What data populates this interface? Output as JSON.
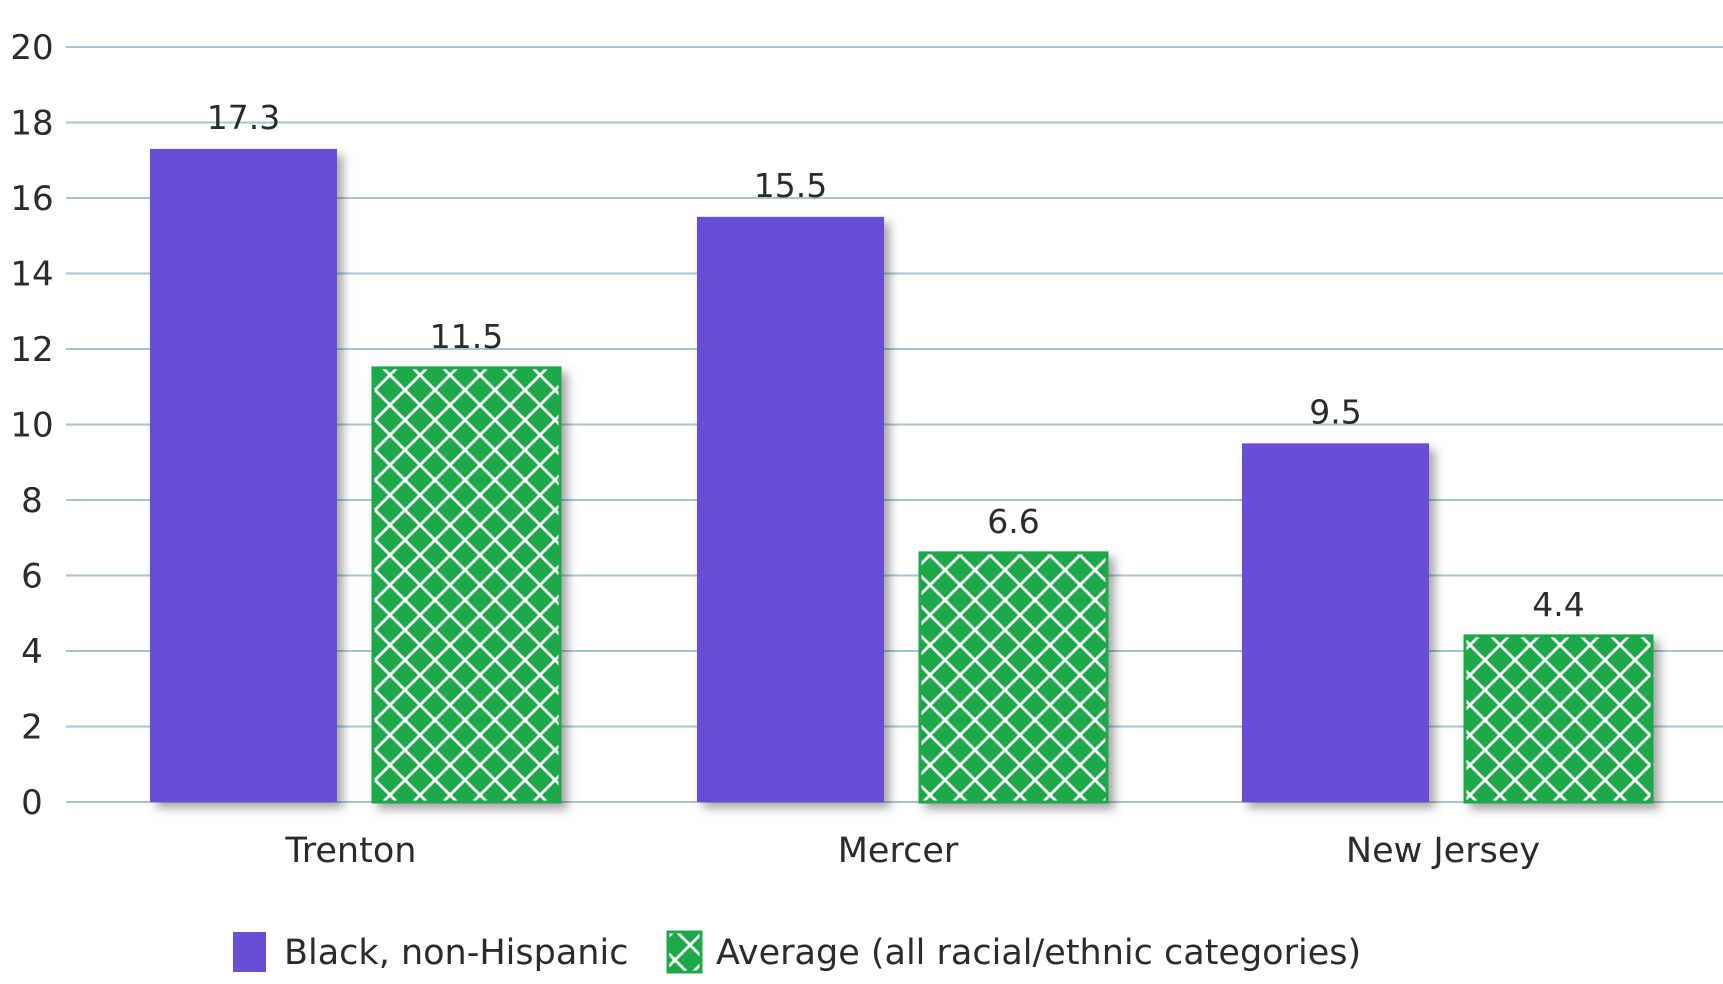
{
  "chart_data": {
    "type": "bar",
    "categories": [
      "Trenton",
      "Mercer",
      "New Jersey"
    ],
    "series": [
      {
        "name": "Black, non-Hispanic",
        "values": [
          17.3,
          15.5,
          9.5
        ],
        "color": "#6a4ed6"
      },
      {
        "name": "Average (all racial/ethnic categories)",
        "values": [
          11.5,
          6.6,
          4.4
        ],
        "color": "#1fa84a",
        "pattern": "diamond-lattice"
      }
    ],
    "ylim": [
      0,
      20
    ],
    "yticks": [
      0,
      2,
      4,
      6,
      8,
      10,
      12,
      14,
      16,
      18,
      20
    ],
    "grid": true,
    "data_labels": true,
    "legend_position": "bottom-left",
    "gridline_color": "#a8c3d6"
  }
}
